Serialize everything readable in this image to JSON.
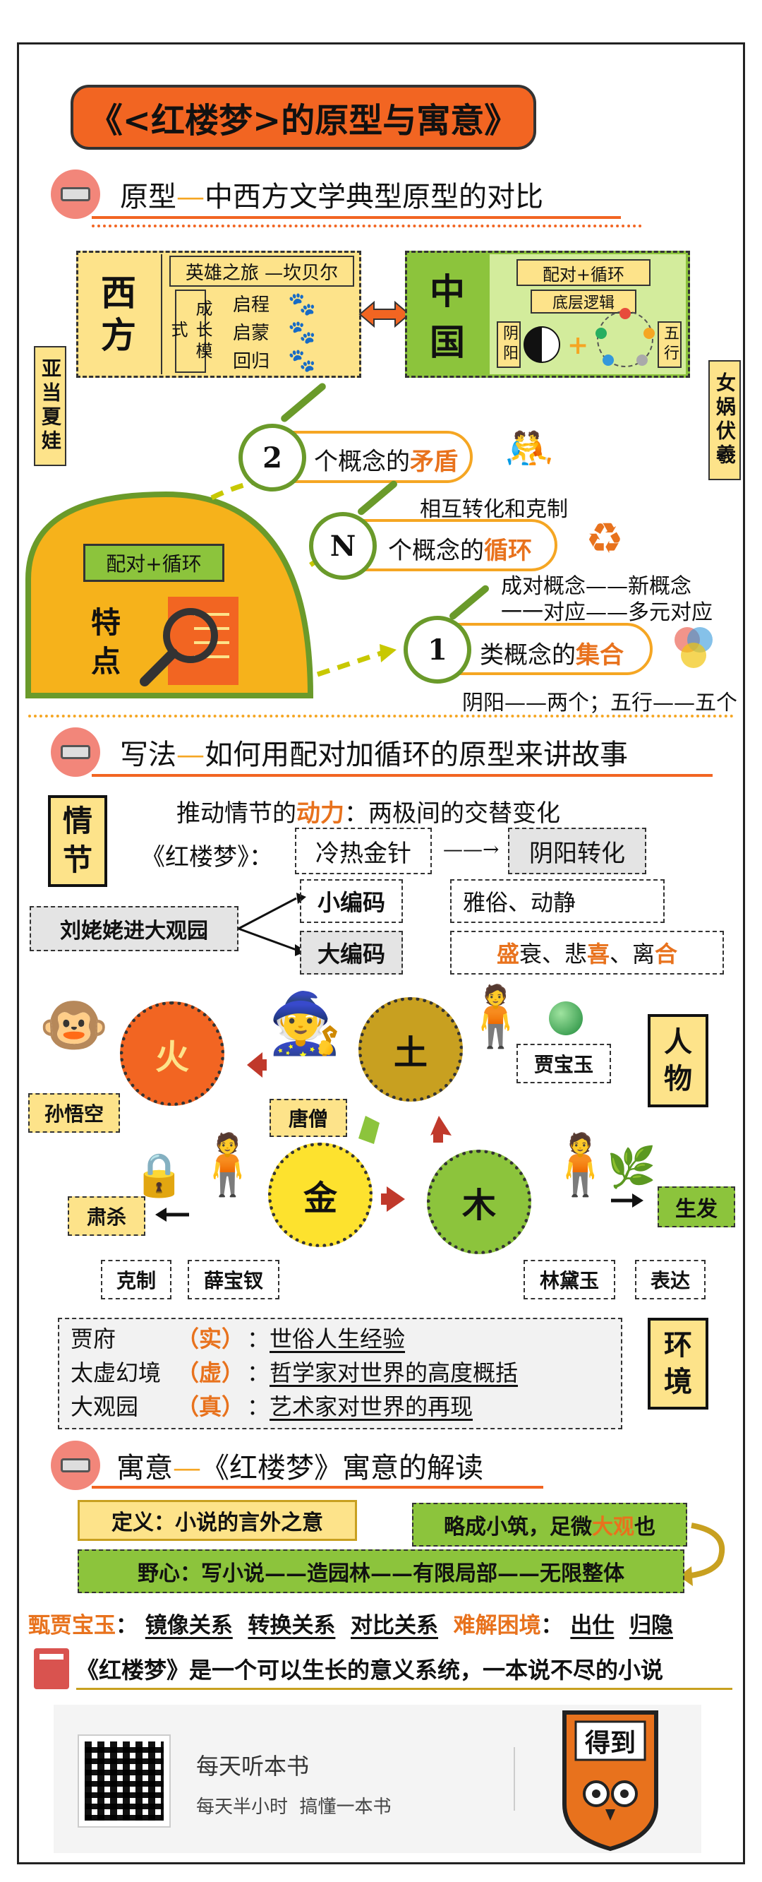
{
  "title": "《<红楼梦>的原型与寓意》",
  "section1": {
    "title_a": "原型",
    "dash": "—",
    "title_b": "中西方文学典型原型的对比",
    "west": {
      "label": "西方",
      "heading": "英雄之旅 —坎贝尔",
      "side": "成长模式",
      "steps": [
        "启程",
        "启蒙",
        "回归"
      ]
    },
    "china": {
      "label": "中国",
      "heading1": "配对+循环",
      "heading2": "底层逻辑",
      "left": "阴阳",
      "right": "五行"
    },
    "adam_eve": "亚当夏娃",
    "nuwa_fuxi": "女娲伏羲",
    "dome": {
      "tag": "配对+循环",
      "label": "特点"
    },
    "c2": {
      "num": "2",
      "text_a": "个概念的",
      "text_b": "矛盾"
    },
    "cn": {
      "num": "N",
      "note": "相互转化和克制",
      "text_a": "个概念的",
      "text_b": "循环"
    },
    "c1": {
      "num": "1",
      "note1": "成对概念——新概念",
      "note2": "一一对应——多元对应",
      "text_a": "类概念的",
      "text_b": "集合",
      "bottom": "阴阳——两个；五行——五个"
    }
  },
  "section2": {
    "title_a": "写法",
    "dash": "—",
    "title_b": "如何用配对加循环的原型来讲故事",
    "plot_label": "情节",
    "drive_a": "推动情节的",
    "drive_b": "动力",
    "drive_c": "：两极间的交替变化",
    "book": "《红楼梦》：",
    "lengre": "冷热金针",
    "arrow": "——→",
    "yinyang": "阴阳转化",
    "liu": "刘姥姥进大观园",
    "small_code": "小编码",
    "big_code": "大编码",
    "yasu": "雅俗、动静",
    "sheng": [
      "盛",
      "衰、悲",
      "喜",
      "、离",
      "合"
    ],
    "char_label": "人物",
    "elements": {
      "fire": "火",
      "earth": "土",
      "metal": "金",
      "wood": "木"
    },
    "names": {
      "sun": "孙悟空",
      "tang": "唐僧",
      "jia": "贾宝玉",
      "xue": "薛宝钗",
      "lin": "林黛玉"
    },
    "suxia": "肃杀",
    "kezhi": "克制",
    "shengfa": "生发",
    "biaoda": "表达",
    "env_label": "环境",
    "env": [
      {
        "place": "贾府",
        "tag": "（实）",
        "desc": "世俗人生经验"
      },
      {
        "place": "太虚幻境",
        "tag": "（虚）",
        "desc": "哲学家对世界的高度概括"
      },
      {
        "place": "大观园",
        "tag": "（真）",
        "desc": "艺术家对世界的再现"
      }
    ]
  },
  "section3": {
    "title_a": "寓意",
    "dash": "—",
    "title_b": "《红楼梦》寓意的解读",
    "definition": "定义：小说的言外之意",
    "lue_a": "略成小筑，足微",
    "lue_b": "大观",
    "lue_c": "也",
    "ambition": "野心：写小说——造园林——有限局部——无限整体",
    "zhen_label": "甄贾宝玉",
    "colon": "：",
    "relations": [
      "镜像关系",
      "转换关系",
      "对比关系"
    ],
    "dilemma_label": "难解困境",
    "dilemmas": [
      "出仕",
      "归隐"
    ],
    "summary": "《红楼梦》是一个可以生长的意义系统，一本说不尽的小说"
  },
  "footer": {
    "app": "每天听本书",
    "slogan": "每天半小时  搞懂一本书",
    "logo": "得到"
  }
}
